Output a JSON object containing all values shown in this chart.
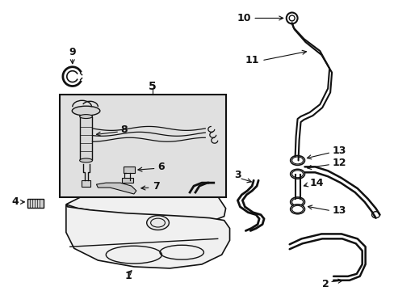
{
  "bg_color": "#ffffff",
  "line_color": "#111111",
  "box_bg": "#e8e8e8",
  "figsize": [
    4.89,
    3.6
  ],
  "dpi": 100
}
